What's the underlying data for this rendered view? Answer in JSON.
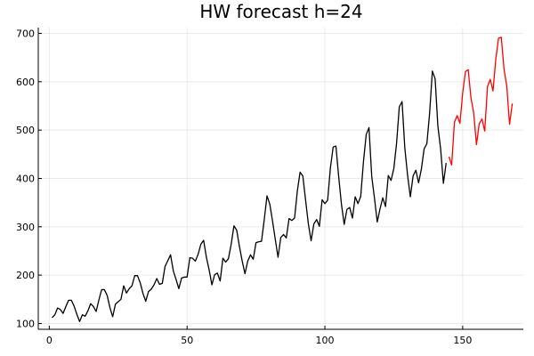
{
  "chart_data": {
    "type": "line",
    "title": "HW forecast h=24",
    "xlabel": "",
    "ylabel": "",
    "xlim": [
      -4,
      172
    ],
    "ylim": [
      88,
      712
    ],
    "xticks": [
      0,
      50,
      100,
      150
    ],
    "yticks": [
      100,
      200,
      300,
      400,
      500,
      600,
      700
    ],
    "grid": true,
    "legend": false,
    "series": [
      {
        "color": "#000000",
        "x": [
          1,
          2,
          3,
          4,
          5,
          6,
          7,
          8,
          9,
          10,
          11,
          12,
          13,
          14,
          15,
          16,
          17,
          18,
          19,
          20,
          21,
          22,
          23,
          24,
          25,
          26,
          27,
          28,
          29,
          30,
          31,
          32,
          33,
          34,
          35,
          36,
          37,
          38,
          39,
          40,
          41,
          42,
          43,
          44,
          45,
          46,
          47,
          48,
          49,
          50,
          51,
          52,
          53,
          54,
          55,
          56,
          57,
          58,
          59,
          60,
          61,
          62,
          63,
          64,
          65,
          66,
          67,
          68,
          69,
          70,
          71,
          72,
          73,
          74,
          75,
          76,
          77,
          78,
          79,
          80,
          81,
          82,
          83,
          84,
          85,
          86,
          87,
          88,
          89,
          90,
          91,
          92,
          93,
          94,
          95,
          96,
          97,
          98,
          99,
          100,
          101,
          102,
          103,
          104,
          105,
          106,
          107,
          108,
          109,
          110,
          111,
          112,
          113,
          114,
          115,
          116,
          117,
          118,
          119,
          120,
          121,
          122,
          123,
          124,
          125,
          126,
          127,
          128,
          129,
          130,
          131,
          132,
          133,
          134,
          135,
          136,
          137,
          138,
          139,
          140,
          141,
          142,
          143,
          144
        ],
        "values": [
          112,
          118,
          132,
          129,
          121,
          135,
          148,
          148,
          136,
          119,
          104,
          118,
          115,
          126,
          141,
          135,
          125,
          149,
          170,
          170,
          158,
          133,
          114,
          140,
          145,
          150,
          178,
          163,
          172,
          178,
          199,
          199,
          184,
          162,
          146,
          166,
          171,
          180,
          193,
          181,
          183,
          218,
          230,
          242,
          209,
          191,
          172,
          194,
          196,
          196,
          236,
          235,
          229,
          243,
          264,
          272,
          237,
          211,
          180,
          201,
          204,
          188,
          235,
          227,
          234,
          264,
          302,
          293,
          259,
          229,
          203,
          229,
          242,
          233,
          267,
          269,
          270,
          315,
          364,
          347,
          312,
          274,
          237,
          278,
          284,
          277,
          317,
          313,
          318,
          374,
          413,
          405,
          355,
          306,
          271,
          306,
          315,
          301,
          356,
          348,
          355,
          422,
          465,
          467,
          404,
          347,
          305,
          336,
          340,
          318,
          362,
          348,
          363,
          435,
          491,
          505,
          404,
          359,
          310,
          337,
          360,
          342,
          406,
          396,
          420,
          472,
          548,
          559,
          463,
          407,
          362,
          405,
          417,
          391,
          419,
          461,
          472,
          535,
          622,
          606,
          508,
          461,
          390,
          432
        ]
      },
      {
        "color": "#ff0000",
        "x": [
          145,
          146,
          147,
          148,
          149,
          150,
          151,
          152,
          153,
          154,
          155,
          156,
          157,
          158,
          159,
          160,
          161,
          162,
          163,
          164,
          165,
          166,
          167,
          168
        ],
        "values": [
          445,
          428,
          516,
          530,
          514,
          577,
          621,
          625,
          567,
          535,
          470,
          513,
          523,
          498,
          590,
          605,
          581,
          646,
          690,
          692,
          626,
          591,
          512,
          555
        ]
      }
    ]
  }
}
